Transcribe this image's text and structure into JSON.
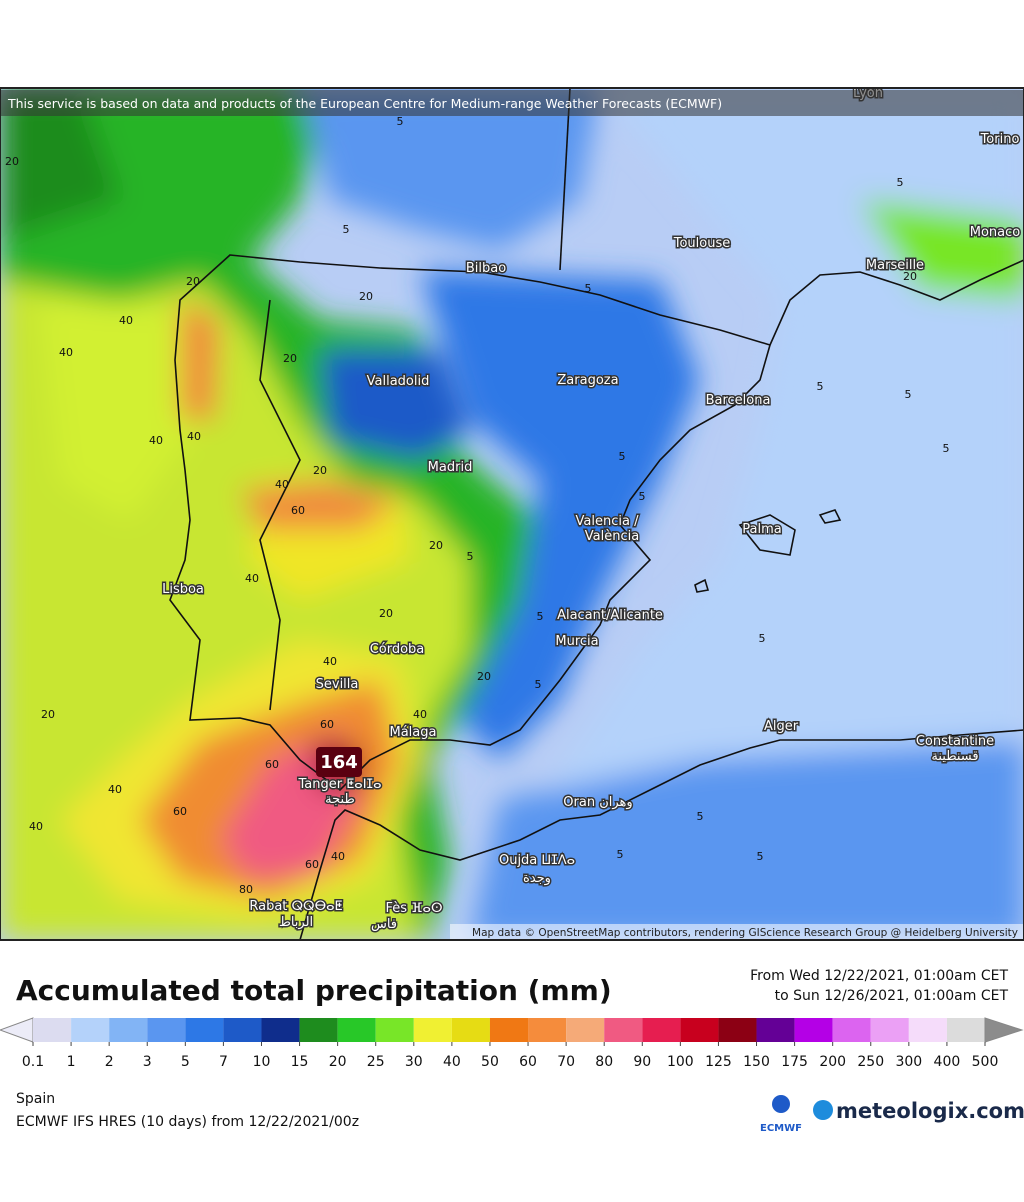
{
  "header": {
    "attribution": "This service is based on data and products of the European Centre for Medium-range Weather Forecasts (ECMWF)"
  },
  "map": {
    "cities": [
      {
        "label": "Lyon"
      },
      {
        "label": "Torino"
      },
      {
        "label": "Toulouse"
      },
      {
        "label": "Monaco"
      },
      {
        "label": "Marseille"
      },
      {
        "label": "Bilbao"
      },
      {
        "label": "Valladolid"
      },
      {
        "label": "Zaragoza"
      },
      {
        "label": "Barcelona"
      },
      {
        "label": "Madrid"
      },
      {
        "label": "Valencia /"
      },
      {
        "label": "València"
      },
      {
        "label": "Palma"
      },
      {
        "label": "Lisboa"
      },
      {
        "label": "Alacant/Alicante"
      },
      {
        "label": "Murcia"
      },
      {
        "label": "Córdoba"
      },
      {
        "label": "Sevilla"
      },
      {
        "label": "Málaga"
      },
      {
        "label": "Tanger ⵟⴰⵏⵊⴰ"
      },
      {
        "label": "طنجة"
      },
      {
        "label": "Alger"
      },
      {
        "label": "Constantine"
      },
      {
        "label": "قسنطينة"
      },
      {
        "label": "Oran وهران"
      },
      {
        "label": "Oujda ⵡⵊⴷⴰ"
      },
      {
        "label": "وجدة"
      },
      {
        "label": "Rabat ⵕⵕⴱⴰⵟ"
      },
      {
        "label": "الرباط"
      },
      {
        "label": "Fès ⴼⴰⵙ"
      },
      {
        "label": "فاس"
      }
    ],
    "contour_labels": [
      20,
      5,
      5,
      5,
      5,
      20,
      40,
      40,
      40,
      40,
      20,
      20,
      20,
      20,
      40,
      60,
      20,
      40,
      40,
      40,
      60,
      40,
      60,
      60,
      80,
      60,
      40,
      40,
      20,
      20,
      5,
      5,
      5,
      5,
      5,
      5,
      5,
      5,
      5,
      5,
      5,
      5,
      20
    ],
    "max_label": "164",
    "map_credit": "Map data © OpenStreetMap contributors, rendering GIScience Research Group @ Heidelberg University"
  },
  "legend": {
    "title": "Accumulated total precipitation (mm)",
    "period": [
      "From Wed 12/22/2021, 01:00am CET",
      "to Sun 12/26/2021, 01:00am CET"
    ],
    "under_color": "#ececf8",
    "over_color": "#8c8c8c",
    "colors": [
      "#dcdcf0",
      "#b4d2fa",
      "#82b4f5",
      "#5a96f0",
      "#2d78e6",
      "#1e5ac8",
      "#0f2d8c",
      "#1e8c1e",
      "#28c828",
      "#78e628",
      "#f0f032",
      "#e6dc14",
      "#f07814",
      "#f58c3c",
      "#f5aa78",
      "#f05a82",
      "#e61e50",
      "#c8001e",
      "#8c0014",
      "#640096",
      "#b400e6",
      "#dc64f0",
      "#eba0f5",
      "#f5dcfa",
      "#dcdcdc"
    ],
    "ticks": [
      0.1,
      1,
      2,
      3,
      5,
      7,
      10,
      15,
      20,
      25,
      30,
      40,
      50,
      60,
      70,
      80,
      90,
      100,
      125,
      150,
      175,
      200,
      250,
      300,
      400,
      500
    ]
  },
  "footer": {
    "region": "Spain",
    "model": "ECMWF IFS HRES (10 days) from 12/22/2021/00z"
  },
  "logos": {
    "ecmwf": "ECMWF",
    "meteologix": "meteologix.com"
  }
}
